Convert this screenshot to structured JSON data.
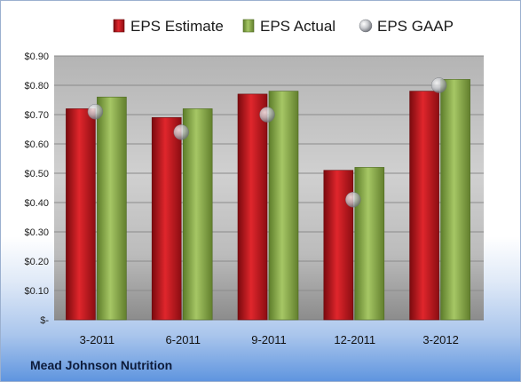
{
  "company": "Mead Johnson Nutrition",
  "colors": {
    "estimate": "#c0151b",
    "actual": "#8aae4a",
    "gaap": "#b9bcc2"
  },
  "chart_data": {
    "type": "bar",
    "categories": [
      "3-2011",
      "6-2011",
      "9-2011",
      "12-2011",
      "3-2012"
    ],
    "series": [
      {
        "name": "EPS Estimate",
        "values": [
          0.72,
          0.69,
          0.77,
          0.51,
          0.78
        ]
      },
      {
        "name": "EPS Actual",
        "values": [
          0.76,
          0.72,
          0.78,
          0.52,
          0.82
        ]
      },
      {
        "name": "EPS GAAP",
        "values": [
          0.71,
          0.64,
          0.7,
          0.41,
          0.8
        ],
        "style": "marker"
      }
    ],
    "ylim": [
      0,
      0.9
    ],
    "ytick_labels": [
      "$-",
      "$0.10",
      "$0.20",
      "$0.30",
      "$0.40",
      "$0.50",
      "$0.60",
      "$0.70",
      "$0.80",
      "$0.90"
    ],
    "grid": true,
    "legend": "top"
  }
}
